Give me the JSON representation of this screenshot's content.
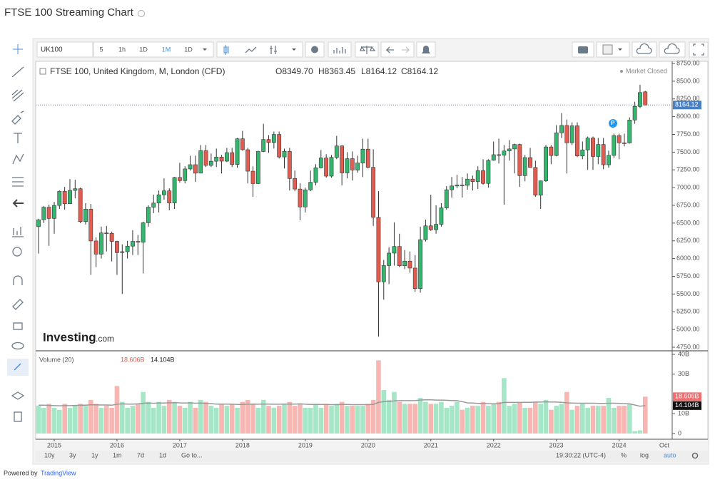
{
  "header": {
    "title": "FTSE 100 Streaming Chart"
  },
  "toolbar": {
    "symbol": "UK100",
    "intervals": [
      "5",
      "1h",
      "1D",
      "1M",
      "1D"
    ]
  },
  "legend": {
    "description": "FTSE 100, United Kingdom, M, London (CFD)",
    "open": "O8349.70",
    "high": "H8363.45",
    "low": "L8164.12",
    "close": "C8164.12",
    "status": "Market Closed"
  },
  "watermark": {
    "brand": "Investing",
    "suffix": ".com"
  },
  "bottom_bar": {
    "ranges": [
      "10y",
      "3y",
      "1y",
      "1m",
      "7d",
      "1d"
    ],
    "goto": "Go to...",
    "clock": "19:30:22 (UTC-4)",
    "percent": "%",
    "log": "log",
    "auto": "auto"
  },
  "footer": {
    "powered_by": "Powered by",
    "provider": "TradingView"
  },
  "chart_data": {
    "type": "candlestick",
    "categories": [
      null,
      null,
      null,
      "2015",
      null,
      null,
      null,
      null,
      null,
      null,
      null,
      null,
      null,
      null,
      null,
      "2016",
      null,
      null,
      null,
      null,
      null,
      null,
      null,
      null,
      null,
      null,
      null,
      "2017",
      null,
      null,
      null,
      null,
      null,
      null,
      null,
      null,
      null,
      null,
      null,
      "2018",
      null,
      null,
      null,
      null,
      null,
      null,
      null,
      null,
      null,
      null,
      null,
      "2019",
      null,
      null,
      null,
      null,
      null,
      null,
      null,
      null,
      null,
      null,
      null,
      "2020",
      null,
      null,
      null,
      null,
      null,
      null,
      null,
      null,
      null,
      null,
      null,
      "2021",
      null,
      null,
      null,
      null,
      null,
      null,
      null,
      null,
      null,
      null,
      null,
      "2022",
      null,
      null,
      null,
      null,
      null,
      null,
      null,
      null,
      null,
      null,
      null,
      "2023",
      null,
      null,
      null,
      null,
      null,
      null,
      null,
      null,
      null,
      null,
      null,
      "2024",
      null,
      null,
      null,
      null,
      null
    ],
    "x_end_label": "Oct",
    "candles": [
      [
        6450,
        6560,
        6070,
        6547
      ],
      [
        6547,
        6740,
        6500,
        6723
      ],
      [
        6723,
        6760,
        6180,
        6566
      ],
      [
        6566,
        6800,
        6350,
        6749
      ],
      [
        6749,
        6960,
        6700,
        6947
      ],
      [
        6947,
        7010,
        6690,
        6773
      ],
      [
        6773,
        7120,
        6770,
        6961
      ],
      [
        6961,
        7110,
        6850,
        6984
      ],
      [
        6984,
        7000,
        6500,
        6521
      ],
      [
        6521,
        6780,
        6480,
        6696
      ],
      [
        6696,
        6770,
        5770,
        6248
      ],
      [
        6248,
        6300,
        5880,
        6062
      ],
      [
        6062,
        6450,
        6000,
        6361
      ],
      [
        6361,
        6460,
        6100,
        6356
      ],
      [
        6356,
        6380,
        5960,
        6242
      ],
      [
        6242,
        6250,
        5770,
        6084
      ],
      [
        6084,
        6200,
        5500,
        6097
      ],
      [
        6097,
        6250,
        6000,
        6175
      ],
      [
        6175,
        6400,
        6050,
        6242
      ],
      [
        6242,
        6330,
        6050,
        6231
      ],
      [
        6231,
        6520,
        5790,
        6504
      ],
      [
        6504,
        6750,
        6450,
        6724
      ],
      [
        6724,
        6900,
        6640,
        6782
      ],
      [
        6782,
        6960,
        6650,
        6899
      ],
      [
        6899,
        7130,
        6830,
        6954
      ],
      [
        6954,
        6990,
        6680,
        6784
      ],
      [
        6784,
        7150,
        6700,
        7143
      ],
      [
        7143,
        7350,
        7070,
        7099
      ],
      [
        7099,
        7300,
        7060,
        7263
      ],
      [
        7263,
        7450,
        7240,
        7323
      ],
      [
        7323,
        7450,
        7080,
        7204
      ],
      [
        7204,
        7600,
        7200,
        7520
      ],
      [
        7520,
        7600,
        7290,
        7313
      ],
      [
        7313,
        7480,
        7290,
        7372
      ],
      [
        7372,
        7550,
        7290,
        7431
      ],
      [
        7431,
        7460,
        7200,
        7373
      ],
      [
        7373,
        7560,
        7360,
        7493
      ],
      [
        7493,
        7560,
        7290,
        7327
      ],
      [
        7327,
        7700,
        7280,
        7688
      ],
      [
        7688,
        7800,
        7520,
        7534
      ],
      [
        7534,
        7560,
        7060,
        7232
      ],
      [
        7232,
        7300,
        6870,
        7057
      ],
      [
        7057,
        7520,
        7050,
        7509
      ],
      [
        7509,
        7900,
        7500,
        7678
      ],
      [
        7678,
        7740,
        7490,
        7637
      ],
      [
        7637,
        7790,
        7550,
        7749
      ],
      [
        7749,
        7790,
        7410,
        7432
      ],
      [
        7432,
        7550,
        7270,
        7510
      ],
      [
        7510,
        7560,
        6960,
        7128
      ],
      [
        7128,
        7240,
        6950,
        6980
      ],
      [
        6980,
        7060,
        6540,
        6728
      ],
      [
        6728,
        7000,
        6650,
        6969
      ],
      [
        6969,
        7240,
        6950,
        7075
      ],
      [
        7075,
        7330,
        7030,
        7279
      ],
      [
        7279,
        7530,
        7270,
        7418
      ],
      [
        7418,
        7470,
        7140,
        7162
      ],
      [
        7162,
        7460,
        7140,
        7426
      ],
      [
        7426,
        7730,
        7400,
        7587
      ],
      [
        7587,
        7600,
        7030,
        7207
      ],
      [
        7207,
        7500,
        7130,
        7408
      ],
      [
        7408,
        7510,
        7100,
        7248
      ],
      [
        7248,
        7450,
        7210,
        7347
      ],
      [
        7347,
        7690,
        7150,
        7542
      ],
      [
        7542,
        7690,
        7270,
        7286
      ],
      [
        7286,
        7540,
        6460,
        6581
      ],
      [
        6581,
        6950,
        4900,
        5672
      ],
      [
        5672,
        5980,
        5420,
        5901
      ],
      [
        5901,
        6160,
        5640,
        6077
      ],
      [
        6077,
        6510,
        5900,
        6170
      ],
      [
        6170,
        6350,
        5880,
        5898
      ],
      [
        5898,
        6120,
        5850,
        5964
      ],
      [
        5964,
        6100,
        5800,
        5866
      ],
      [
        5866,
        6050,
        5530,
        5577
      ],
      [
        5577,
        6450,
        5520,
        6266
      ],
      [
        6266,
        6550,
        6240,
        6461
      ],
      [
        6461,
        6900,
        6390,
        6407
      ],
      [
        6407,
        6750,
        6350,
        6483
      ],
      [
        6483,
        6780,
        6450,
        6714
      ],
      [
        6714,
        7020,
        6690,
        6970
      ],
      [
        6970,
        7150,
        6860,
        7023
      ],
      [
        7023,
        7180,
        6990,
        7037
      ],
      [
        7037,
        7150,
        6860,
        7032
      ],
      [
        7032,
        7200,
        6970,
        7120
      ],
      [
        7120,
        7170,
        6960,
        7086
      ],
      [
        7086,
        7300,
        6980,
        7238
      ],
      [
        7238,
        7400,
        7040,
        7059
      ],
      [
        7059,
        7400,
        7000,
        7385
      ],
      [
        7385,
        7650,
        7380,
        7464
      ],
      [
        7464,
        7690,
        7340,
        7458
      ],
      [
        7458,
        7600,
        6760,
        7516
      ],
      [
        7516,
        7670,
        7380,
        7545
      ],
      [
        7545,
        7620,
        7200,
        7608
      ],
      [
        7608,
        7620,
        7010,
        7169
      ],
      [
        7169,
        7460,
        7090,
        7423
      ],
      [
        7423,
        7560,
        7280,
        7284
      ],
      [
        7284,
        7380,
        6870,
        6894
      ],
      [
        6894,
        7100,
        6700,
        7095
      ],
      [
        7095,
        7600,
        7080,
        7573
      ],
      [
        7573,
        7600,
        7330,
        7452
      ],
      [
        7452,
        7880,
        7440,
        7772
      ],
      [
        7772,
        8050,
        7700,
        7876
      ],
      [
        7876,
        7960,
        7200,
        7632
      ],
      [
        7632,
        7920,
        7600,
        7871
      ],
      [
        7871,
        7920,
        7430,
        7446
      ],
      [
        7446,
        7650,
        7400,
        7532
      ],
      [
        7532,
        7720,
        7250,
        7699
      ],
      [
        7699,
        7720,
        7250,
        7439
      ],
      [
        7439,
        7700,
        7330,
        7608
      ],
      [
        7608,
        7700,
        7260,
        7322
      ],
      [
        7322,
        7520,
        7280,
        7454
      ],
      [
        7454,
        7760,
        7420,
        7733
      ],
      [
        7733,
        7760,
        7400,
        7631
      ],
      [
        7631,
        7760,
        7580,
        7630
      ],
      [
        7630,
        7990,
        7620,
        7953
      ],
      [
        7953,
        8210,
        7900,
        8144
      ],
      [
        8144,
        8450,
        8120,
        8340
      ],
      [
        8349.7,
        8363.45,
        8164.12,
        8164.12
      ]
    ],
    "up_color": "#35b66f",
    "down_color": "#e25c50",
    "wick_color": "#333333",
    "ylim": [
      4750,
      8750
    ],
    "yticks": [
      {
        "value": 4750,
        "label": "4750.00"
      },
      {
        "value": 5000,
        "label": "5000.00"
      },
      {
        "value": 5250,
        "label": "5250.00"
      },
      {
        "value": 5500,
        "label": "5500.00"
      },
      {
        "value": 5750,
        "label": "5750.00"
      },
      {
        "value": 6000,
        "label": "6000.00"
      },
      {
        "value": 6250,
        "label": "6250.00"
      },
      {
        "value": 6500,
        "label": "6500.00"
      },
      {
        "value": 6750,
        "label": "6750.00"
      },
      {
        "value": 7000,
        "label": "7000.00"
      },
      {
        "value": 7250,
        "label": "7250.00"
      },
      {
        "value": 7500,
        "label": "7500.00"
      },
      {
        "value": 7750,
        "label": "7750.00"
      },
      {
        "value": 8000,
        "label": "8000.00"
      },
      {
        "value": 8250,
        "label": "8250.00"
      },
      {
        "value": 8500,
        "label": "8500.00"
      },
      {
        "value": 8750,
        "label": "8750.00"
      }
    ],
    "grid": false,
    "last_price": {
      "value": 8164.12,
      "label": "8164.12"
    },
    "volume": {
      "name": "Volume (20)",
      "values": [
        14,
        13,
        15,
        13,
        12,
        15,
        13,
        14,
        15,
        14,
        17,
        15,
        13,
        14,
        13,
        24,
        16,
        13,
        14,
        15,
        21,
        16,
        13,
        16,
        14,
        17,
        16,
        14,
        13,
        16,
        13,
        17,
        16,
        14,
        13,
        15,
        14,
        15,
        13,
        16,
        17,
        15,
        13,
        17,
        14,
        13,
        14,
        15,
        16,
        14,
        15,
        13,
        13,
        15,
        13,
        15,
        14,
        15,
        16,
        14,
        14,
        14,
        14,
        15,
        17,
        37,
        22,
        17,
        21,
        16,
        15,
        15,
        15,
        18,
        16,
        15,
        15,
        16,
        13,
        14,
        16,
        12,
        13,
        14,
        14,
        16,
        14,
        15,
        16,
        28,
        14,
        15,
        16,
        13,
        13,
        16,
        15,
        17,
        12,
        14,
        15,
        21,
        12,
        14,
        15,
        13,
        14,
        14,
        14,
        18,
        13,
        14,
        14,
        15,
        1.2,
        1.6,
        18.606
      ],
      "ma": [
        14.3,
        14.3,
        14.2,
        14.1,
        14.0,
        14.1,
        14.1,
        14.2,
        14.3,
        14.3,
        14.5,
        14.5,
        14.4,
        14.4,
        14.3,
        14.8,
        15.0,
        14.9,
        14.9,
        15.0,
        15.3,
        15.4,
        15.3,
        15.4,
        15.4,
        15.5,
        15.6,
        15.5,
        15.4,
        15.5,
        15.3,
        15.4,
        15.2,
        15.1,
        14.9,
        14.9,
        14.9,
        14.8,
        14.7,
        14.7,
        14.8,
        14.9,
        14.8,
        14.9,
        14.9,
        14.8,
        14.8,
        14.9,
        14.9,
        14.9,
        15.0,
        14.8,
        14.7,
        14.7,
        14.7,
        14.7,
        14.6,
        14.6,
        14.7,
        14.7,
        14.6,
        14.6,
        14.6,
        14.6,
        14.7,
        15.7,
        16.1,
        16.2,
        16.5,
        16.6,
        16.6,
        16.6,
        16.7,
        16.9,
        17.0,
        17.0,
        16.9,
        16.9,
        16.8,
        16.7,
        16.6,
        16.1,
        15.5,
        15.4,
        15.2,
        15.2,
        15.1,
        15.0,
        15.1,
        15.7,
        15.7,
        15.7,
        15.7,
        15.8,
        15.8,
        15.9,
        15.9,
        16.0,
        15.9,
        15.9,
        15.8,
        15.5,
        15.4,
        15.3,
        15.3,
        15.3,
        15.3,
        15.2,
        15.2,
        15.3,
        15.3,
        15.2,
        15.1,
        15.0,
        14.4,
        13.8,
        14.104
      ],
      "last_label": "18.606B",
      "ma_label": "14.104B",
      "up_color": "#a4e6c6",
      "down_color": "#f8b6b2",
      "ma_color": "#999999",
      "ylim": [
        0,
        40
      ],
      "yticks": [
        0,
        {
          "value": 10,
          "label": "10B"
        },
        {
          "value": 30,
          "label": "30B"
        },
        {
          "value": 40,
          "label": "40B"
        }
      ]
    }
  }
}
